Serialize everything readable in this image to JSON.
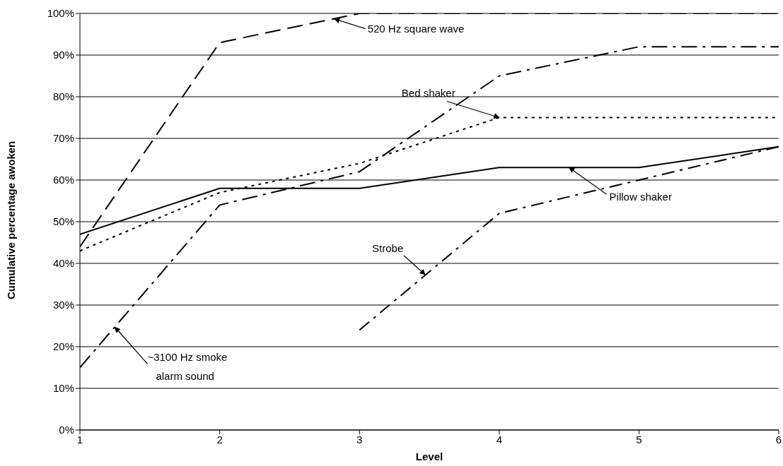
{
  "chart_data": {
    "type": "line",
    "xlabel": "Level",
    "ylabel": "Cumulative percentage awoken",
    "x": [
      1,
      2,
      3,
      4,
      5,
      6
    ],
    "series": [
      {
        "color": "#000000",
        "line_style": "dashed",
        "values": [
          44,
          93,
          100,
          100,
          100,
          100
        ]
      },
      {
        "color": "#000000",
        "line_style": "dashed",
        "values": [
          15,
          54,
          62,
          85,
          92,
          92
        ]
      },
      {
        "color": "#000000",
        "line_style": "dotted",
        "values": [
          43,
          57,
          64,
          75,
          75,
          75
        ]
      },
      {
        "color": "#000000",
        "line_style": "solid",
        "values": [
          47,
          58,
          58,
          63,
          63,
          68
        ]
      },
      {
        "color": "#000000",
        "line_style": "dashed",
        "values": [
          null,
          null,
          24,
          52,
          60,
          68
        ]
      }
    ],
    "annotations": [
      {
        "text": "520 Hz square wave",
        "x": 2.82,
        "y": 98.7
      },
      {
        "text": "~3100 Hz smoke alarm sound",
        "x": 1.25,
        "y": 24.7
      },
      {
        "text": "Bed shaker",
        "x": 4,
        "y": 75
      },
      {
        "text": "Pillow shaker",
        "x": 4.5,
        "y": 63
      },
      {
        "text": "Strobe",
        "x": 3.47,
        "y": 37.3
      }
    ],
    "xlim": [
      1,
      6
    ],
    "xticks": [
      1,
      2,
      3,
      4,
      5,
      6
    ],
    "ylim": [
      0,
      100
    ],
    "yticks": [
      {
        "value": 0,
        "label": "0%"
      },
      {
        "value": 10,
        "label": "10%"
      },
      {
        "value": 20,
        "label": "20%"
      },
      {
        "value": 30,
        "label": "30%"
      },
      {
        "value": 40,
        "label": "40%"
      },
      {
        "value": 50,
        "label": "50%"
      },
      {
        "value": 60,
        "label": "60%"
      },
      {
        "value": 70,
        "label": "70%"
      },
      {
        "value": 80,
        "label": "80%"
      },
      {
        "value": 90,
        "label": "90%"
      },
      {
        "value": 100,
        "label": "100%"
      }
    ],
    "grid": "y",
    "marker": "none"
  }
}
